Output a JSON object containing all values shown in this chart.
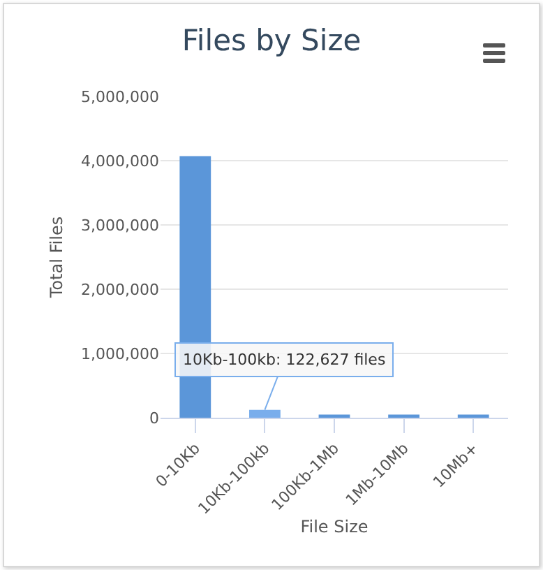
{
  "chart_data": {
    "type": "bar",
    "title": "Files by Size",
    "xlabel": "File Size",
    "ylabel": "Total Files",
    "categories": [
      "0-10Kb",
      "10Kb-100kb",
      "100Kb-1Mb",
      "1Mb-10Mb",
      "10Mb+"
    ],
    "values": [
      4070000,
      122627,
      50000,
      50000,
      50000
    ],
    "colors": [
      "#5b96d9",
      "#7aaeec",
      "#5b96d9",
      "#5b96d9",
      "#5b96d9"
    ],
    "ylim": [
      0,
      5000000
    ],
    "yticks": [
      {
        "value": 0,
        "label": "0"
      },
      {
        "value": 1000000,
        "label": "1,000,000"
      },
      {
        "value": 2000000,
        "label": "2,000,000"
      },
      {
        "value": 3000000,
        "label": "3,000,000"
      },
      {
        "value": 4000000,
        "label": "4,000,000"
      },
      {
        "value": 5000000,
        "label": "5,000,000"
      }
    ],
    "grid": "y",
    "legend": false,
    "annotations": [
      {
        "text": "10Kb-100kb: 122,627 files",
        "x": "10Kb-100kb",
        "y": 122627
      }
    ]
  }
}
